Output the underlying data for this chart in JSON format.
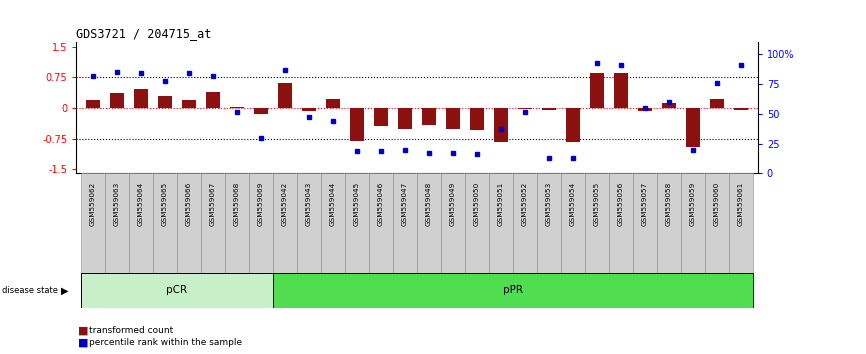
{
  "title": "GDS3721 / 204715_at",
  "samples": [
    "GSM559062",
    "GSM559063",
    "GSM559064",
    "GSM559065",
    "GSM559066",
    "GSM559067",
    "GSM559068",
    "GSM559069",
    "GSM559042",
    "GSM559043",
    "GSM559044",
    "GSM559045",
    "GSM559046",
    "GSM559047",
    "GSM559048",
    "GSM559049",
    "GSM559050",
    "GSM559051",
    "GSM559052",
    "GSM559053",
    "GSM559054",
    "GSM559055",
    "GSM559056",
    "GSM559057",
    "GSM559058",
    "GSM559059",
    "GSM559060",
    "GSM559061"
  ],
  "transformed_count": [
    0.2,
    0.36,
    0.46,
    0.3,
    0.2,
    0.38,
    0.03,
    -0.14,
    0.6,
    -0.08,
    0.22,
    -0.8,
    -0.45,
    -0.52,
    -0.42,
    -0.52,
    -0.55,
    -0.82,
    -0.02,
    -0.04,
    -0.82,
    0.85,
    0.85,
    -0.08,
    0.12,
    -0.95,
    0.22,
    -0.05
  ],
  "percentile_rank": [
    82,
    85,
    84,
    78,
    84,
    82,
    52,
    30,
    87,
    47,
    44,
    19,
    19,
    20,
    17,
    17,
    16,
    37,
    52,
    13,
    13,
    93,
    91,
    55,
    60,
    20,
    76,
    91
  ],
  "groups": [
    {
      "name": "pCR",
      "start": 0,
      "end": 8,
      "color": "#c8f0c8"
    },
    {
      "name": "pPR",
      "start": 8,
      "end": 28,
      "color": "#50dd50"
    }
  ],
  "bar_color": "#8B1010",
  "dot_color": "#0000CC",
  "ylim": [
    -1.6,
    1.6
  ],
  "y2lim": [
    0,
    110
  ],
  "ytick_vals": [
    -1.5,
    -0.75,
    0.0,
    0.75,
    1.5
  ],
  "ytick_labels": [
    "-1.5",
    "-0.75",
    "0",
    "0.75",
    "1.5"
  ],
  "y2tick_vals": [
    0,
    25,
    50,
    75,
    100
  ],
  "y2tick_labels": [
    "0",
    "25",
    "50",
    "75",
    "100%"
  ],
  "hlines_dotted": [
    0.75,
    -0.75
  ],
  "hline_red": 0.0,
  "bg_color": "#FFFFFF",
  "tick_bg": "#D0D0D0",
  "group_border": "#000000"
}
